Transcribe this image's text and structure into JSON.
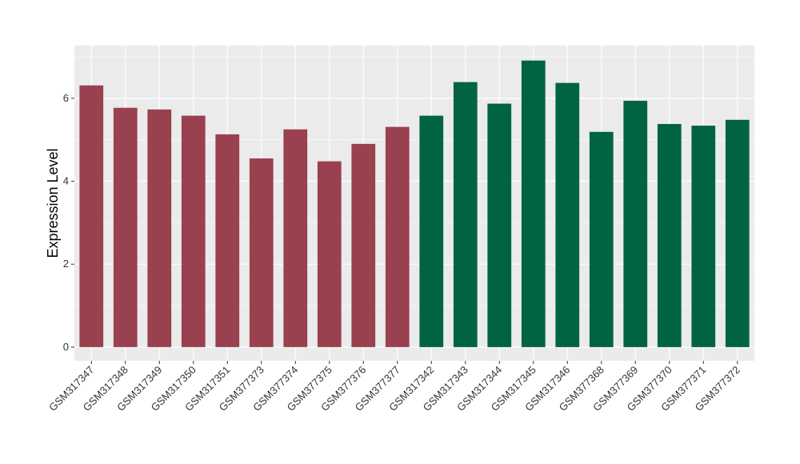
{
  "chart_data": {
    "type": "bar",
    "title": "",
    "xlabel": "",
    "ylabel": "Expression Level",
    "ylim": [
      -0.33,
      7.27
    ],
    "yticks": [
      0,
      2,
      4,
      6
    ],
    "grid": true,
    "categories": [
      "GSM317347",
      "GSM317348",
      "GSM317349",
      "GSM317350",
      "GSM317351",
      "GSM377373",
      "GSM377374",
      "GSM377375",
      "GSM377376",
      "GSM377377",
      "GSM317342",
      "GSM317343",
      "GSM317344",
      "GSM317345",
      "GSM317346",
      "GSM377368",
      "GSM377369",
      "GSM377370",
      "GSM377371",
      "GSM377372"
    ],
    "values": [
      6.31,
      5.77,
      5.73,
      5.58,
      5.13,
      4.55,
      5.25,
      4.48,
      4.9,
      5.31,
      5.58,
      6.39,
      5.87,
      6.91,
      6.37,
      5.19,
      5.94,
      5.38,
      5.34,
      5.48
    ],
    "bar_colors": [
      "#9a4150",
      "#9a4150",
      "#9a4150",
      "#9a4150",
      "#9a4150",
      "#9a4150",
      "#9a4150",
      "#9a4150",
      "#9a4150",
      "#9a4150",
      "#006443",
      "#006443",
      "#006443",
      "#006443",
      "#006443",
      "#006443",
      "#006443",
      "#006443",
      "#006443",
      "#006443"
    ],
    "panel_background": "#ebebeb"
  }
}
